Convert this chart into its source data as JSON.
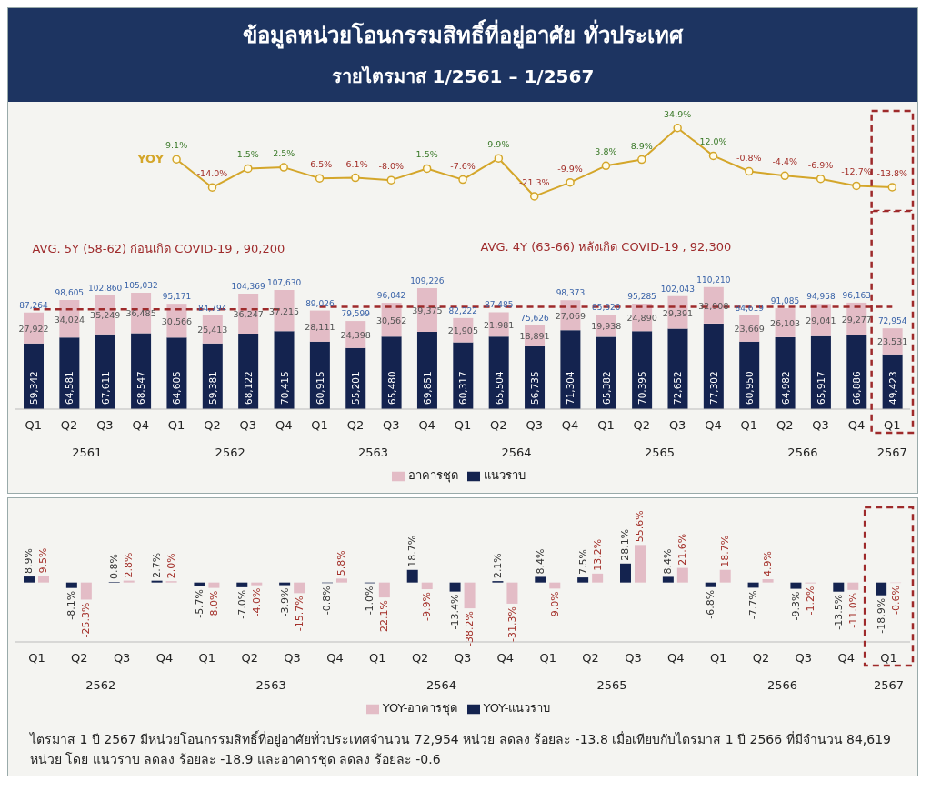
{
  "chart_data": [
    {
      "type": "line",
      "title": "ข้อมูลหน่วยโอนกรรมสิทธิ์ที่อยู่อาศัย ทั่วประเทศ",
      "subtitle": "รายไตรมาส 1/2561 – 1/2567",
      "categories": [
        null,
        null,
        null,
        null,
        null,
        null,
        null,
        null,
        null,
        null,
        null,
        null,
        null,
        null,
        null,
        null,
        null,
        null,
        null,
        null,
        null,
        null,
        null,
        null,
        null
      ],
      "tick_labels": false,
      "marker": "circle",
      "series": [
        {
          "name": "YOY",
          "color": "#d4a62a",
          "values": [
            null,
            null,
            null,
            null,
            9.1,
            -14.0,
            1.5,
            2.5,
            -6.5,
            -6.1,
            -8.0,
            1.5,
            -7.6,
            9.9,
            -21.3,
            -9.9,
            3.8,
            8.9,
            34.9,
            12.0,
            -0.8,
            -4.4,
            -6.9,
            -12.7,
            -13.8
          ],
          "value_labels": [
            null,
            null,
            null,
            null,
            "9.1%",
            "-14.0%",
            "1.5%",
            "2.5%",
            "-6.5%",
            "-6.1%",
            "-8.0%",
            "1.5%",
            "-7.6%",
            "9.9%",
            "-21.3%",
            "-9.9%",
            "3.8%",
            "8.9%",
            "34.9%",
            "12.0%",
            "-0.8%",
            "-4.4%",
            "-6.9%",
            "-12.7%",
            "-13.8%"
          ]
        }
      ]
    },
    {
      "type": "bar",
      "categories": [
        "Q1",
        "Q2",
        "Q3",
        "Q4",
        "Q1",
        "Q2",
        "Q3",
        "Q4",
        "Q1",
        "Q2",
        "Q3",
        "Q4",
        "Q1",
        "Q2",
        "Q3",
        "Q4",
        "Q1",
        "Q2",
        "Q3",
        "Q4",
        "Q1",
        "Q2",
        "Q3",
        "Q4",
        "Q1"
      ],
      "stacked": true,
      "legend": "bottom",
      "tick_labels": "x",
      "series": [
        {
          "name": "แนวราบ",
          "color": "#14234f",
          "values": [
            59342,
            64581,
            67611,
            68547,
            64605,
            59381,
            68122,
            70415,
            60915,
            55201,
            65480,
            69851,
            60317,
            65504,
            56735,
            71304,
            65382,
            70395,
            72652,
            77302,
            60950,
            64982,
            65917,
            66886,
            49423
          ],
          "value_labels": [
            "59,342",
            "64,581",
            "67,611",
            "68,547",
            "64,605",
            "59,381",
            "68,122",
            "70,415",
            "60,915",
            "55,201",
            "65,480",
            "69,851",
            "60,317",
            "65,504",
            "56,735",
            "71,304",
            "65,382",
            "70,395",
            "72,652",
            "77,302",
            "60,950",
            "64,982",
            "65,917",
            "66,886",
            "49,423"
          ]
        },
        {
          "name": "อาคารชุด",
          "color": "#e3bcc6",
          "values": [
            27922,
            34024,
            35249,
            36485,
            30566,
            25413,
            36247,
            37215,
            28111,
            24398,
            30562,
            39375,
            21905,
            21981,
            18891,
            27069,
            19938,
            24890,
            29391,
            32908,
            23669,
            26103,
            29041,
            29277,
            23531
          ],
          "value_labels": [
            "27,922",
            "34,024",
            "35,249",
            "36,485",
            "30,566",
            "25,413",
            "36,247",
            "37,215",
            "28,111",
            "24,398",
            "30,562",
            "39,375",
            "21,905",
            "21,981",
            "18,891",
            "27,069",
            "19,938",
            "24,890",
            "29,391",
            "32,908",
            "23,669",
            "26,103",
            "29,041",
            "29,277",
            "23,531"
          ]
        }
      ],
      "totals": [
        "87,264",
        "98,605",
        "102,860",
        "105,032",
        "95,171",
        "84,794",
        "104,369",
        "107,630",
        "89,026",
        "79,599",
        "96,042",
        "109,226",
        "82,222",
        "87,485",
        "75,626",
        "98,373",
        "85,320",
        "95,285",
        "102,043",
        "110,210",
        "84,619",
        "91,085",
        "94,958",
        "96,163",
        "72,954"
      ],
      "ref_lines": [
        {
          "axis": "y",
          "value": 90200,
          "label": "AVG. 5Y (58-62) ก่อนเกิด COVID-19 , 90,200",
          "color": "#9e2a2b",
          "line_style": "dashed"
        },
        {
          "axis": "y",
          "value": 92300,
          "label": "AVG. 4Y (63-66) หลังเกิด COVID-19 , 92,300",
          "color": "#9e2a2b",
          "line_style": "dashed"
        }
      ],
      "annotations": [
        "2561",
        "2562",
        "2563",
        "2564",
        "2565",
        "2566",
        "2567"
      ]
    },
    {
      "type": "bar",
      "categories": [
        "Q1",
        "Q2",
        "Q3",
        "Q4",
        "Q1",
        "Q2",
        "Q3",
        "Q4",
        "Q1",
        "Q2",
        "Q3",
        "Q4",
        "Q1",
        "Q2",
        "Q3",
        "Q4",
        "Q1",
        "Q2",
        "Q3",
        "Q4",
        "Q1"
      ],
      "legend": "bottom",
      "tick_labels": "x",
      "series": [
        {
          "name": "YOY-แนวราบ",
          "color": "#14234f",
          "values": [
            8.9,
            -8.1,
            0.8,
            2.7,
            -5.7,
            -7.0,
            -3.9,
            -0.8,
            -1.0,
            18.7,
            -13.4,
            2.1,
            8.4,
            7.5,
            28.1,
            8.4,
            -6.8,
            -7.7,
            -9.3,
            -13.5,
            -18.9
          ],
          "value_labels": [
            "8.9%",
            "-8.1%",
            "0.8%",
            "2.7%",
            "-5.7%",
            "-7.0%",
            "-3.9%",
            "-0.8%",
            "-1.0%",
            "18.7%",
            "-13.4%",
            "2.1%",
            "8.4%",
            "7.5%",
            "28.1%",
            "8.4%",
            "-6.8%",
            "-7.7%",
            "-9.3%",
            "-13.5%",
            "-18.9%"
          ]
        },
        {
          "name": "YOY-อาคารชุด",
          "color": "#e3bcc6",
          "values": [
            9.5,
            -25.3,
            2.8,
            2.0,
            -8.0,
            -4.0,
            -15.7,
            5.8,
            -22.1,
            -9.9,
            -38.2,
            -31.3,
            -9.0,
            13.2,
            55.6,
            21.6,
            18.7,
            4.9,
            -1.2,
            -11.0,
            -0.6
          ],
          "value_labels": [
            "9.5%",
            "-25.3%",
            "2.8%",
            "2.0%",
            "-8.0%",
            "-4.0%",
            "-15.7%",
            "5.8%",
            "-22.1%",
            "-9.9%",
            "-38.2%",
            "-31.3%",
            "-9.0%",
            "13.2%",
            "55.6%",
            "21.6%",
            "18.7%",
            "4.9%",
            "-1.2%",
            "-11.0%",
            "-0.6%"
          ]
        }
      ],
      "annotations": [
        "2562",
        "2563",
        "2564",
        "2565",
        "2566",
        "2567",
        "ไตรมาส 1 ปี 2567 มีหน่วยโอนกรรมสิทธิ์ที่อยู่อาศัยทั่วประเทศจำนวน 72,954 หน่วย ลดลง ร้อยละ -13.8 เมื่อเทียบกับไตรมาส 1 ปี 2566 ที่มีจำนวน 84,619 หน่วย โดย แนวราบ ลดลง ร้อยละ -18.9 และอาคารชุด ลดลง ร้อยละ -0.6"
      ]
    }
  ]
}
